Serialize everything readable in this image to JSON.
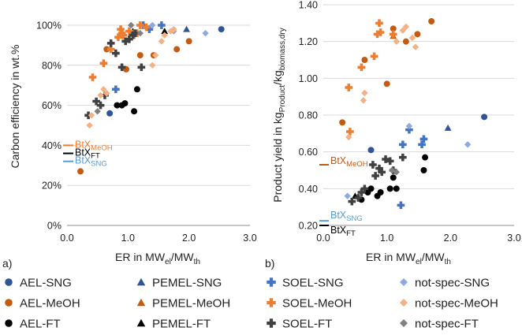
{
  "figure": {
    "legend_entries": [
      {
        "label": "AEL-SNG",
        "marker": "circle",
        "color": "#2F5597"
      },
      {
        "label": "AEL-MeOH",
        "marker": "circle",
        "color": "#C55A11"
      },
      {
        "label": "AEL-FT",
        "marker": "circle",
        "color": "#000000"
      },
      {
        "label": "PEMEL-SNG",
        "marker": "triangle",
        "color": "#2F5597"
      },
      {
        "label": "PEMEL-MeOH",
        "marker": "triangle",
        "color": "#C55A11"
      },
      {
        "label": "PEMEL-FT",
        "marker": "triangle",
        "color": "#000000"
      },
      {
        "label": "SOEL-SNG",
        "marker": "plus",
        "color": "#4472C4"
      },
      {
        "label": "SOEL-MeOH",
        "marker": "plus",
        "color": "#ED7D31"
      },
      {
        "label": "SOEL-FT",
        "marker": "plus",
        "color": "#404040"
      },
      {
        "label": "not-spec-SNG",
        "marker": "diamond",
        "color": "#8FAADC"
      },
      {
        "label": "not-spec-MeOH",
        "marker": "diamond",
        "color": "#F4B183"
      },
      {
        "label": "not-spec-FT",
        "marker": "diamond",
        "color": "#808080"
      }
    ]
  },
  "chart_data": [
    {
      "type": "scatter",
      "panel_label": "a)",
      "title": "",
      "ylabel": "Carbon efficiency in wt.%",
      "xlabel": {
        "main": "ER in MW",
        "sub1": "el",
        "mid": "/MW",
        "sub2": "th"
      },
      "xlim": [
        0,
        3
      ],
      "ylim": [
        0,
        100
      ],
      "xticks": [
        "0.0",
        "1.0",
        "2.0",
        "3.0"
      ],
      "yticks": [
        "0%",
        "20%",
        "40%",
        "60%",
        "80%",
        "100%"
      ],
      "reference_lines": [
        {
          "main": "BtX",
          "sub": "MeOH",
          "value": 40,
          "color": "#ED7D31"
        },
        {
          "main": "BtX",
          "sub": "FT",
          "value": 36,
          "color": "#000000"
        },
        {
          "main": "BtX",
          "sub": "SNG",
          "value": 32,
          "color": "#5B9BD5"
        }
      ],
      "series": [
        {
          "name": "AEL-SNG",
          "x": [
            0.7,
            2.53
          ],
          "y": [
            56,
            98
          ]
        },
        {
          "name": "AEL-MeOH",
          "x": [
            0.22,
            0.65,
            0.97,
            1.2,
            1.42,
            1.8,
            2.0
          ],
          "y": [
            27,
            88,
            78,
            85,
            85,
            88,
            92
          ]
        },
        {
          "name": "AEL-FT",
          "x": [
            0.82,
            0.9,
            0.95,
            1.1,
            1.15
          ],
          "y": [
            60,
            60,
            61,
            57,
            68
          ]
        },
        {
          "name": "PEMEL-SNG",
          "x": [
            1.96
          ],
          "y": [
            98
          ]
        },
        {
          "name": "PEMEL-MeOH",
          "x": [
            1.08
          ],
          "y": [
            96
          ]
        },
        {
          "name": "PEMEL-FT",
          "x": [
            1.08,
            1.6
          ],
          "y": [
            97,
            97
          ]
        },
        {
          "name": "SOEL-SNG",
          "x": [
            0.8,
            1.1,
            1.25,
            1.35,
            1.55
          ],
          "y": [
            68,
            96,
            100,
            98,
            100
          ]
        },
        {
          "name": "SOEL-MeOH",
          "x": [
            0.42,
            0.6,
            0.72,
            0.84,
            0.88,
            0.9,
            0.92,
            1.02,
            1.1,
            1.15,
            1.2,
            1.3
          ],
          "y": [
            74,
            81,
            88,
            94,
            98,
            96,
            95,
            97,
            95,
            96,
            100,
            99
          ]
        },
        {
          "name": "SOEL-FT",
          "x": [
            0.35,
            0.48,
            0.55,
            0.62,
            0.72,
            0.8,
            0.9,
            0.96,
            1.02,
            1.08,
            1.12,
            1.22
          ],
          "y": [
            55,
            62,
            60,
            65,
            91,
            86,
            79,
            92,
            93,
            95,
            96,
            79
          ]
        },
        {
          "name": "not-spec-SNG",
          "x": [
            1.4,
            1.75,
            2.27
          ],
          "y": [
            100,
            97,
            96
          ]
        },
        {
          "name": "not-spec-MeOH",
          "x": [
            0.37,
            0.4,
            0.55,
            0.6,
            0.65,
            1.4,
            1.45,
            1.55,
            1.6,
            1.7,
            1.75
          ],
          "y": [
            50,
            55,
            65,
            68,
            66,
            80,
            85,
            92,
            95,
            97,
            98
          ]
        },
        {
          "name": "not-spec-FT",
          "x": [
            0.5,
            1.05,
            1.2
          ],
          "y": [
            57,
            100,
            96
          ]
        }
      ]
    },
    {
      "type": "scatter",
      "panel_label": "b)",
      "title": "",
      "ylabel": {
        "main": "Product yield in kg",
        "sub1": "Product",
        "mid": "/kg",
        "sub2": "biomass,dry"
      },
      "xlabel": {
        "main": "ER in MW",
        "sub1": "el",
        "mid": "/MW",
        "sub2": "th"
      },
      "xlim": [
        0,
        3
      ],
      "ylim": [
        0.2,
        1.4
      ],
      "xticks": [
        "0.0",
        "1.0",
        "2.0",
        "3.0"
      ],
      "yticks": [
        "0.20",
        "0.40",
        "0.60",
        "0.80",
        "1.00",
        "1.20",
        "1.40"
      ],
      "reference_lines": [
        {
          "main": "BtX",
          "sub": "MeOH",
          "value": 0.53,
          "color": "#C55A11"
        },
        {
          "main": "BtX",
          "sub": "SNG",
          "value": 0.225,
          "color": "#5B9BD5"
        },
        {
          "main": "BtX",
          "sub": "FT",
          "value": 0.2,
          "color": "#000000"
        }
      ],
      "series": [
        {
          "name": "AEL-SNG",
          "x": [
            0.75,
            2.53
          ],
          "y": [
            0.61,
            0.79
          ]
        },
        {
          "name": "AEL-MeOH",
          "x": [
            0.3,
            0.65,
            1.0,
            1.1,
            1.3,
            1.48,
            1.7
          ],
          "y": [
            0.76,
            1.1,
            0.97,
            1.27,
            1.2,
            1.24,
            1.31
          ]
        },
        {
          "name": "AEL-FT",
          "x": [
            0.6,
            0.7,
            0.75,
            0.85,
            0.9,
            1.05,
            1.1,
            1.15,
            1.58,
            1.6
          ],
          "y": [
            0.34,
            0.38,
            0.4,
            0.36,
            0.38,
            0.4,
            0.46,
            0.4,
            0.5,
            0.57
          ]
        },
        {
          "name": "PEMEL-SNG",
          "x": [
            1.96
          ],
          "y": [
            0.73
          ]
        },
        {
          "name": "PEMEL-MeOH",
          "x": [
            1.1
          ],
          "y": [
            1.23
          ]
        },
        {
          "name": "PEMEL-FT",
          "x": [
            0.5
          ],
          "y": [
            0.36
          ]
        },
        {
          "name": "SOEL-SNG",
          "x": [
            1.25,
            1.35,
            1.55,
            1.58,
            1.22
          ],
          "y": [
            0.64,
            0.72,
            0.64,
            0.67,
            0.31
          ]
        },
        {
          "name": "SOEL-MeOH",
          "x": [
            0.4,
            0.42,
            0.6,
            0.8,
            0.85,
            0.88,
            0.9,
            1.1
          ],
          "y": [
            0.95,
            0.71,
            1.06,
            1.12,
            1.24,
            1.3,
            1.25,
            1.24
          ]
        },
        {
          "name": "SOEL-FT",
          "x": [
            0.45,
            0.55,
            0.6,
            0.65,
            0.78,
            0.82,
            0.88,
            0.92,
            0.98,
            1.05,
            1.1,
            1.25
          ],
          "y": [
            0.33,
            0.35,
            0.38,
            0.4,
            0.53,
            0.47,
            0.51,
            0.49,
            0.56,
            0.55,
            0.5,
            0.57
          ]
        },
        {
          "name": "not-spec-SNG",
          "x": [
            0.38,
            1.35,
            2.27
          ],
          "y": [
            0.36,
            0.74,
            0.64
          ]
        },
        {
          "name": "not-spec-MeOH",
          "x": [
            0.4,
            0.63,
            0.65,
            1.15,
            1.25,
            1.3,
            1.4,
            1.45
          ],
          "y": [
            0.68,
            0.88,
            0.92,
            1.2,
            1.26,
            1.28,
            1.22,
            1.17
          ]
        },
        {
          "name": "not-spec-FT",
          "x": [
            1.08,
            1.15
          ],
          "y": [
            0.5,
            0.49
          ]
        }
      ]
    }
  ]
}
